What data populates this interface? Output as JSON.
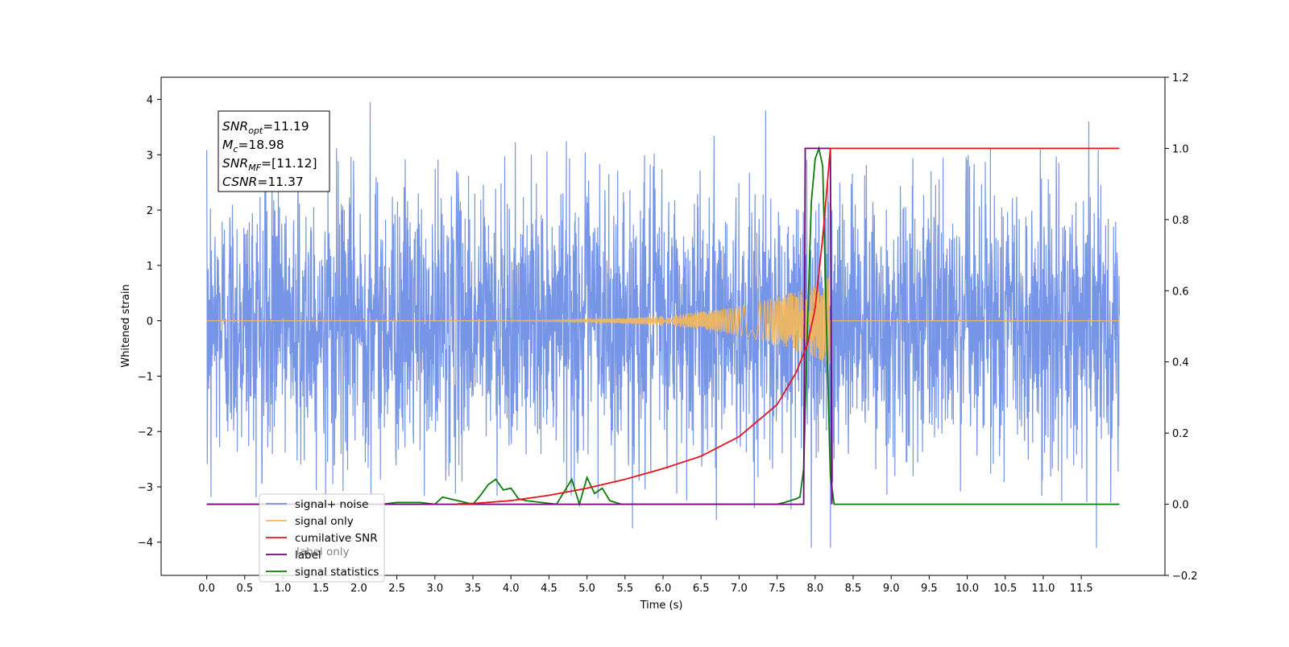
{
  "chart_data": {
    "type": "line",
    "title": "",
    "xlabel": "Time (s)",
    "ylabel": "Whitened strain",
    "xlim": [
      -0.6,
      12.6
    ],
    "ylim": [
      -4.6,
      4.4
    ],
    "y2lim": [
      -0.2,
      1.2
    ],
    "x_ticks": [
      "0.0",
      "0.5",
      "1.0",
      "1.5",
      "2.0",
      "2.5",
      "3.0",
      "3.5",
      "4.0",
      "4.5",
      "5.0",
      "5.5",
      "6.0",
      "6.5",
      "7.0",
      "7.5",
      "8.0",
      "8.5",
      "9.0",
      "9.5",
      "10.0",
      "10.5",
      "11.0",
      "11.5"
    ],
    "y_ticks": [
      "4",
      "3",
      "2",
      "1",
      "0",
      "−1",
      "−2",
      "−3",
      "−4"
    ],
    "y2_ticks": [
      "1.2",
      "1.0",
      "0.8",
      "0.6",
      "0.4",
      "0.2",
      "0.0",
      "−0.2"
    ],
    "grid": false,
    "legend_position": "lower-left",
    "annotation": {
      "lines": [
        {
          "math": "SNR",
          "sub": "opt",
          "value": "=11.19"
        },
        {
          "math": "M",
          "sub": "c",
          "value": "=18.98"
        },
        {
          "math": "SNR",
          "sub": "MF",
          "value": "=[11.12]"
        },
        {
          "math": "CSNR",
          "sub": "",
          "value": "=11.37"
        }
      ]
    },
    "series": [
      {
        "name": "signal+ noise",
        "axis": "left",
        "color": "#6f8fe6",
        "noise_amplitude_approx": 2.0,
        "x_range": [
          0.0,
          12.0
        ],
        "annotated_extremes": [
          {
            "x": 1.2,
            "y": 3.8
          },
          {
            "x": 2.15,
            "y": 3.95
          },
          {
            "x": 7.35,
            "y": 3.8
          },
          {
            "x": 7.95,
            "y": -4.1
          },
          {
            "x": 8.2,
            "y": -4.1
          },
          {
            "x": 11.6,
            "y": 3.6
          },
          {
            "x": 11.7,
            "y": -4.1
          },
          {
            "x": 5.6,
            "y": -3.75
          },
          {
            "x": 6.7,
            "y": -3.6
          }
        ]
      },
      {
        "name": "signal only",
        "axis": "left",
        "color": "#f5b85a",
        "description_values": {
          "flat_before_x": 5.0,
          "peak_x": 8.15,
          "peak_amplitude": 0.75,
          "zero_after_x": 8.2
        }
      },
      {
        "name": "cumilative SNR",
        "axis": "right",
        "color": "#e8141c",
        "x": [
          0.0,
          3.0,
          3.5,
          4.0,
          4.5,
          5.0,
          5.5,
          6.0,
          6.5,
          7.0,
          7.5,
          7.75,
          7.9,
          8.0,
          8.1,
          8.2,
          12.0
        ],
        "y": [
          0.0,
          0.0,
          0.002,
          0.01,
          0.025,
          0.045,
          0.07,
          0.1,
          0.135,
          0.19,
          0.28,
          0.37,
          0.45,
          0.55,
          0.75,
          1.0,
          1.0
        ],
        "start_x": 3.3
      },
      {
        "name": "label",
        "axis": "right",
        "color": "#73037a",
        "x": [
          0.0,
          7.85,
          7.87,
          8.2,
          8.22
        ],
        "y": [
          0.0,
          0.0,
          1.0,
          1.0,
          0.0
        ]
      },
      {
        "name": "signal statistics",
        "axis": "right",
        "color": "#0a7d0a",
        "x": [
          0.0,
          2.3,
          2.5,
          2.8,
          3.0,
          3.1,
          3.3,
          3.5,
          3.6,
          3.7,
          3.8,
          3.9,
          4.0,
          4.1,
          4.2,
          4.4,
          4.6,
          4.8,
          4.9,
          5.0,
          5.1,
          5.2,
          5.3,
          5.45,
          5.6,
          7.5,
          7.6,
          7.75,
          7.8,
          7.85,
          7.9,
          7.95,
          8.0,
          8.05,
          8.1,
          8.15,
          8.2,
          8.25,
          12.0
        ],
        "y": [
          0.0,
          0.0,
          0.005,
          0.005,
          0.0,
          0.02,
          0.01,
          0.0,
          0.025,
          0.055,
          0.07,
          0.04,
          0.045,
          0.015,
          0.01,
          0.005,
          0.0,
          0.07,
          0.0,
          0.075,
          0.03,
          0.045,
          0.01,
          0.0,
          0.0,
          0.0,
          0.005,
          0.015,
          0.02,
          0.1,
          0.5,
          0.85,
          0.97,
          1.0,
          0.95,
          0.5,
          0.08,
          0.0,
          0.0
        ]
      }
    ]
  },
  "legend": {
    "entries": [
      {
        "label": "signal+ noise",
        "color": "#6f8fe6"
      },
      {
        "label": "signal only",
        "color": "#f5b85a"
      },
      {
        "label": "cumilative SNR",
        "color": "#e8141c"
      },
      {
        "label": "label",
        "color": "#73037a"
      },
      {
        "label": "signal statistics",
        "color": "#0a7d0a"
      }
    ],
    "ghost_text": [
      "label only"
    ]
  }
}
